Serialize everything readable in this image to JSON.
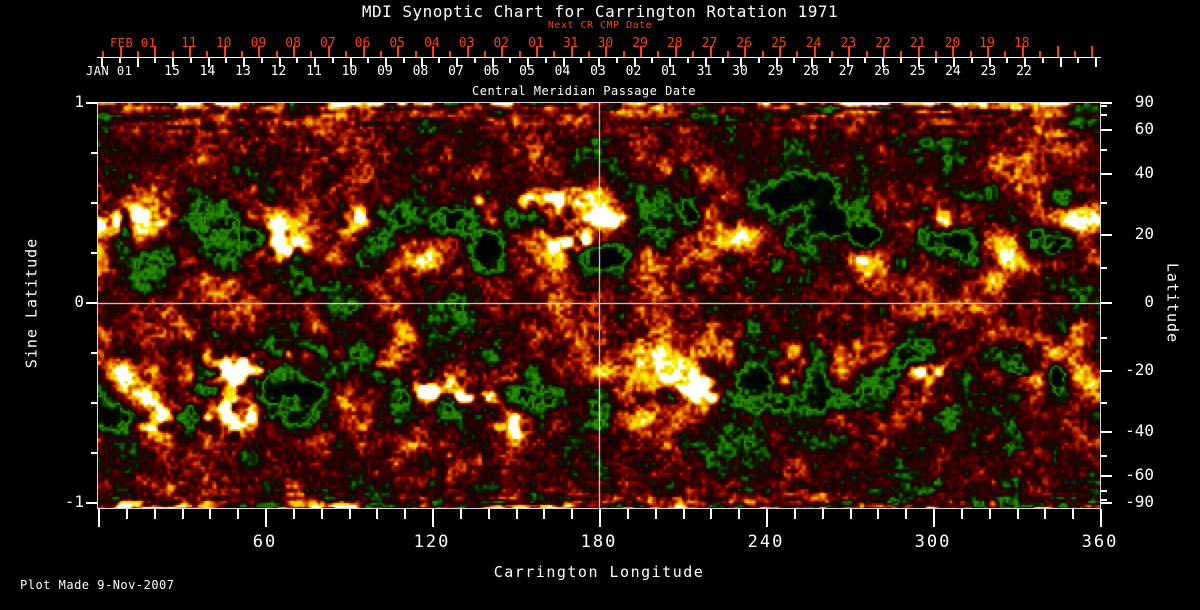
{
  "title": "MDI Synoptic Chart for Carrington Rotation 1971",
  "plot_made": "Plot Made  9-Nov-2007",
  "colors": {
    "background": "#000000",
    "axis_primary": "#ffffff",
    "axis_secondary": "#ff3d0c",
    "grid_line": "#ffffff",
    "frame": "#d8d8d8"
  },
  "chart_data": {
    "type": "heatmap",
    "title": "MDI Synoptic Chart for Carrington Rotation 1971",
    "xlabel": "Carrington Longitude",
    "ylabel_left": "Sine Latitude",
    "ylabel_right": "Latitude",
    "x_range": [
      0,
      360
    ],
    "y_range_sine_latitude": [
      -1,
      1
    ],
    "y_range_latitude": [
      -90,
      90
    ],
    "grid": {
      "longitude_lines_deg": [
        180
      ],
      "sine_latitude_lines": [
        0
      ]
    },
    "axes": {
      "bottom": {
        "label": "Carrington Longitude",
        "tick_labels": [
          "60",
          "120",
          "180",
          "240",
          "300",
          "360"
        ],
        "tick_values": [
          60,
          120,
          180,
          240,
          300,
          360
        ],
        "minor_tick_step_deg": 10
      },
      "left": {
        "label": "Sine Latitude",
        "tick_labels": [
          "1",
          "0",
          "-1"
        ],
        "tick_values": [
          1,
          0,
          -1
        ],
        "minor_tick_step": 0.25
      },
      "right": {
        "label": "Latitude",
        "tick_labels": [
          "90",
          "60",
          "40",
          "20",
          "0",
          "-20",
          "-40",
          "-60",
          "-90"
        ],
        "tick_values": [
          90,
          60,
          40,
          20,
          0,
          -20,
          -40,
          -60,
          -90
        ],
        "minor_tick_step_deg": 10,
        "spacing": "sine"
      },
      "top_white": {
        "label": "Central Meridian Passage Date",
        "month_label": "JAN 01",
        "day_labels": [
          "15",
          "14",
          "13",
          "12",
          "11",
          "10",
          "09",
          "08",
          "07",
          "06",
          "05",
          "04",
          "03",
          "02",
          "01",
          "31",
          "30",
          "29",
          "28",
          "27",
          "26",
          "25",
          "24",
          "23",
          "22"
        ]
      },
      "top_red": {
        "label": "Next CR CMP Date",
        "month_label": "FEB 01",
        "day_labels": [
          "11",
          "10",
          "09",
          "08",
          "07",
          "06",
          "05",
          "04",
          "03",
          "02",
          "01",
          "31",
          "30",
          "29",
          "28",
          "27",
          "26",
          "25",
          "24",
          "23",
          "22",
          "21",
          "20",
          "19",
          "18"
        ]
      }
    },
    "field": {
      "description": "Full-disk solar photospheric magnetogram synoptic map for Carrington rotation 1971. Mottled orange-red quiet-sun background noise with active regions concentrated in two activity belts near +/-20 degrees latitude: dark navy/black patches are negative magnetic polarity, bright white/yellow patches are positive polarity. Bright streaked band along the north pole edge and mixed bright/dark horizontal streaks along the south pole edge. White crosshair grid lines mark 180 degrees longitude and the equator.",
      "polarity_palette": {
        "strong_negative": "#020106",
        "negative_fringe_blue": "#1e2a94",
        "quiet_dark_red": "#98140a",
        "quiet_orange": "#e84000",
        "positive_yellow": "#ffa818",
        "strong_positive": "#fffffc"
      },
      "activity_belt_sine_latitudes": [
        0.36,
        -0.36
      ],
      "seed": 19711
    }
  }
}
